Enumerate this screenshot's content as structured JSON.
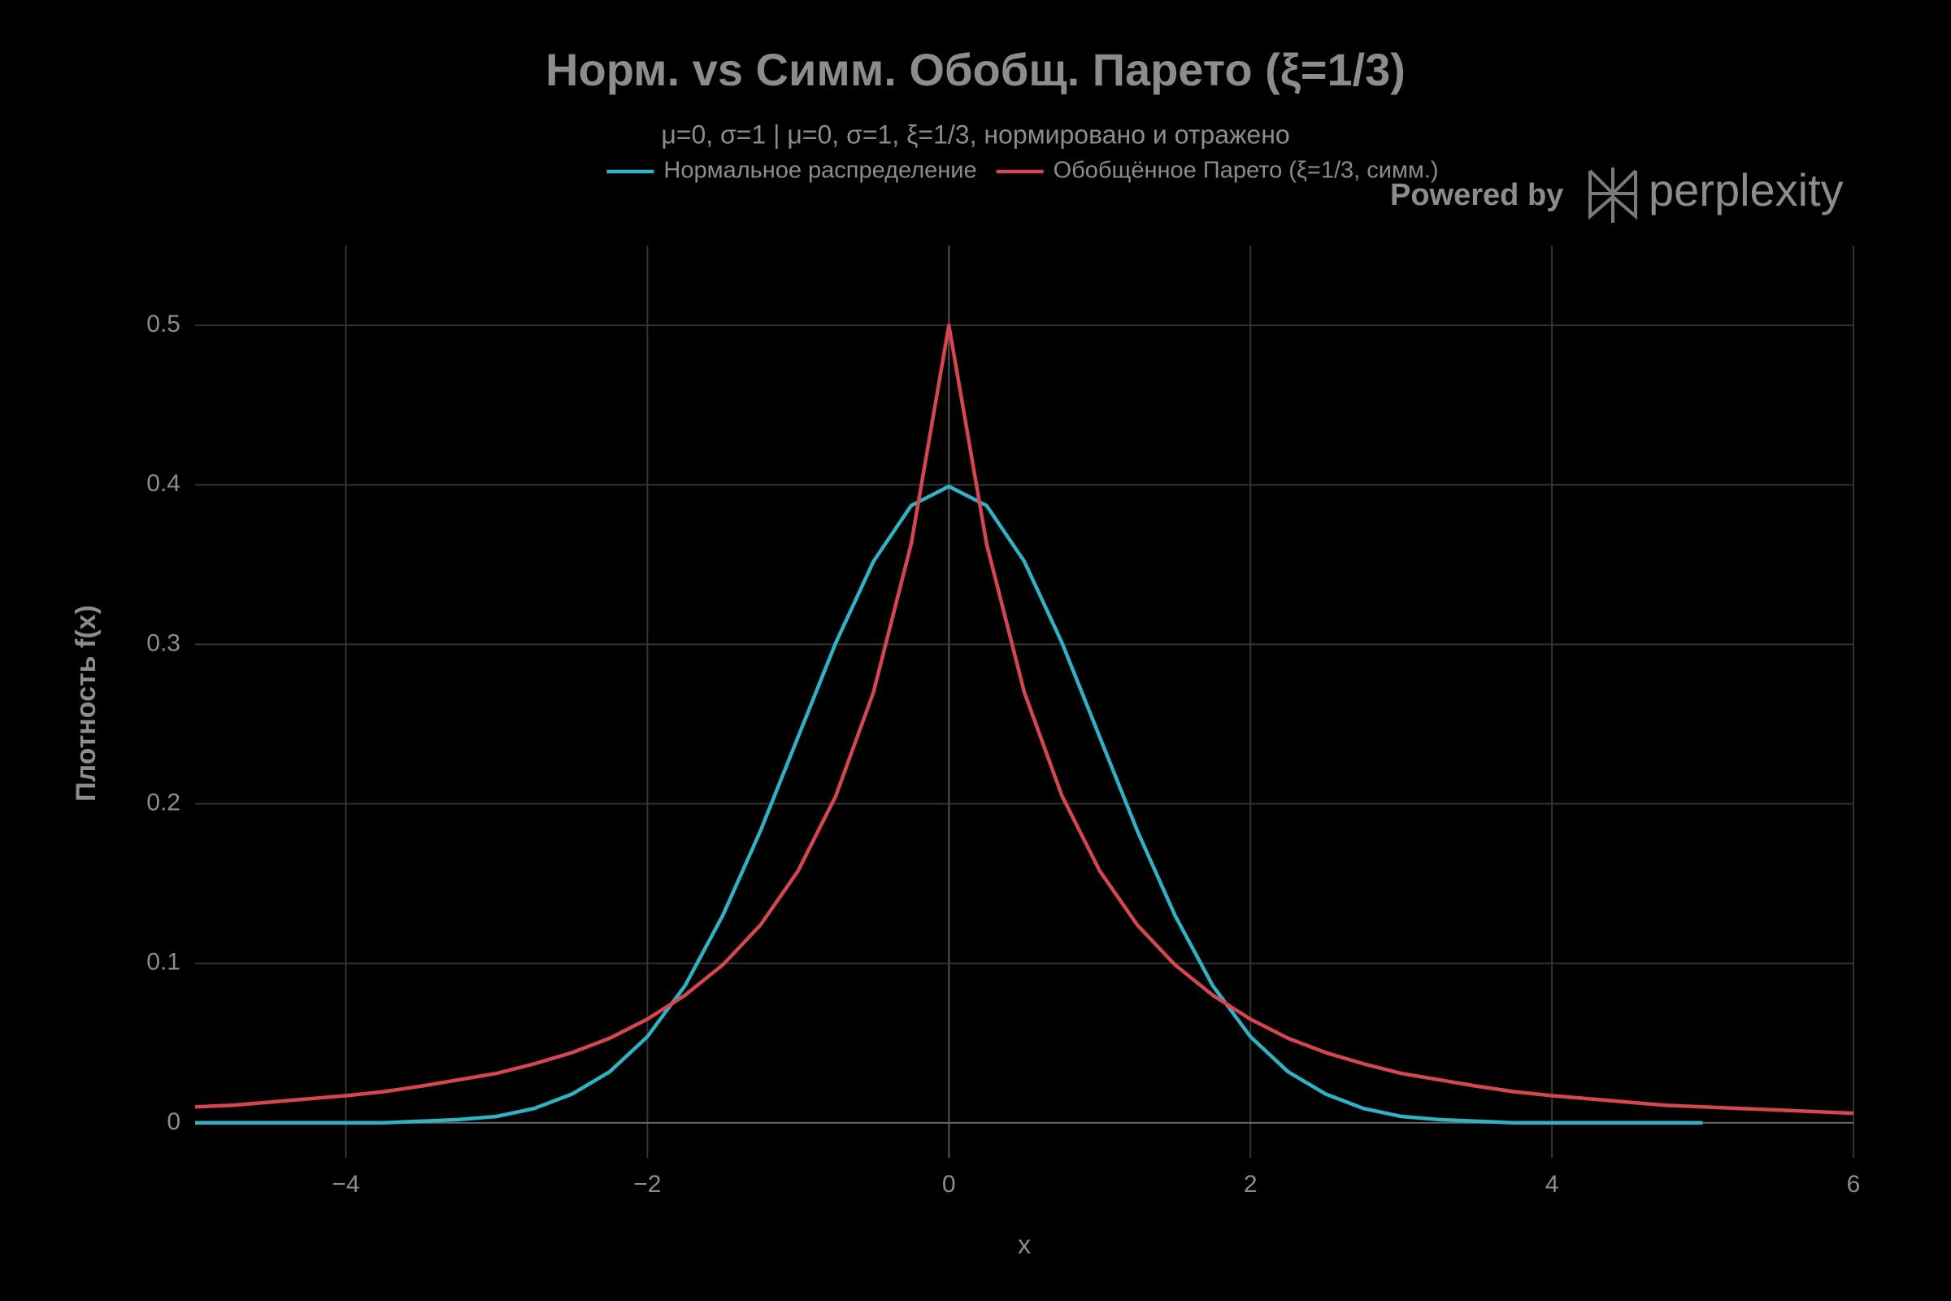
{
  "chart_data": {
    "type": "line",
    "title": "Норм. vs Симм. Обобщ. Парето (ξ=1/3)",
    "subtitle": "μ=0, σ=1 | μ=0, σ=1, ξ=1/3, нормировано и отражено",
    "x_label": "x",
    "y_label": "Плотность f(x)",
    "xlim": [
      -5,
      6
    ],
    "ylim": [
      -0.022,
      0.55
    ],
    "xticks": [
      {
        "value": -4,
        "label": "−4"
      },
      {
        "value": -2,
        "label": "−2"
      },
      0,
      2,
      4,
      6
    ],
    "yticks": [
      0,
      0.1,
      0.2,
      0.3,
      0.4,
      0.5
    ],
    "grid": true,
    "legend": "top-center",
    "series": [
      {
        "name": "Нормальное распределение",
        "color": "#31b1c4",
        "x": [
          -5,
          -4.75,
          -4.5,
          -4.25,
          -4,
          -3.75,
          -3.5,
          -3.25,
          -3,
          -2.75,
          -2.5,
          -2.25,
          -2,
          -1.75,
          -1.5,
          -1.25,
          -1,
          -0.75,
          -0.5,
          -0.25,
          0,
          0.25,
          0.5,
          0.75,
          1,
          1.25,
          1.5,
          1.75,
          2,
          2.25,
          2.5,
          2.75,
          3,
          3.25,
          3.5,
          3.75,
          4,
          4.25,
          4.5,
          4.75,
          5
        ],
        "values": [
          0,
          0,
          0,
          0,
          0,
          0,
          0.001,
          0.002,
          0.004,
          0.009,
          0.018,
          0.032,
          0.054,
          0.086,
          0.13,
          0.183,
          0.242,
          0.301,
          0.352,
          0.387,
          0.399,
          0.387,
          0.352,
          0.301,
          0.242,
          0.183,
          0.13,
          0.086,
          0.054,
          0.032,
          0.018,
          0.009,
          0.004,
          0.002,
          0.001,
          0,
          0,
          0,
          0,
          0,
          0
        ]
      },
      {
        "name": "Обобщённое Парето (ξ=1/3, симм.)",
        "color": "#d5474f",
        "x": [
          -5,
          -4.75,
          -4.5,
          -4.25,
          -4,
          -3.75,
          -3.5,
          -3.25,
          -3,
          -2.75,
          -2.5,
          -2.25,
          -2,
          -1.75,
          -1.5,
          -1.25,
          -1,
          -0.75,
          -0.5,
          -0.25,
          0,
          0.25,
          0.5,
          0.75,
          1,
          1.25,
          1.5,
          1.75,
          2,
          2.25,
          2.5,
          2.75,
          3,
          3.25,
          3.5,
          3.75,
          4,
          4.25,
          4.5,
          4.75,
          5,
          5.25,
          5.5,
          5.75,
          6
        ],
        "values": [
          0.01,
          0.011,
          0.013,
          0.015,
          0.017,
          0.0195,
          0.023,
          0.027,
          0.031,
          0.037,
          0.044,
          0.053,
          0.065,
          0.08,
          0.099,
          0.124,
          0.158,
          0.205,
          0.27,
          0.363,
          0.5,
          0.363,
          0.27,
          0.205,
          0.158,
          0.124,
          0.099,
          0.08,
          0.065,
          0.053,
          0.044,
          0.037,
          0.031,
          0.027,
          0.023,
          0.0195,
          0.017,
          0.015,
          0.013,
          0.011,
          0.01,
          0.009,
          0.008,
          0.007,
          0.006
        ]
      }
    ]
  },
  "watermark": {
    "prefix": "Powered by",
    "brand": "perplexity"
  }
}
